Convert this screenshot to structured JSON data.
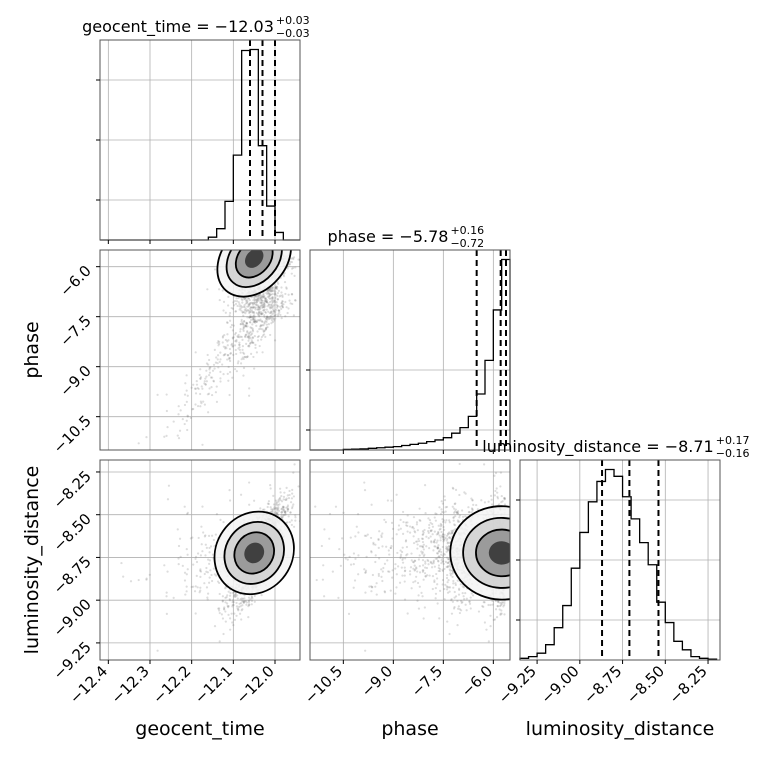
{
  "chart_data": {
    "type": "corner",
    "params": [
      {
        "name": "geocent_time",
        "range": [
          -12.42,
          -11.94
        ],
        "ticks": [
          -12.4,
          -12.3,
          -12.2,
          -12.1,
          -12.0
        ],
        "tick_labels": [
          "−12.4",
          "−12.3",
          "−12.2",
          "−12.1",
          "−12.0"
        ]
      },
      {
        "name": "phase",
        "range": [
          -11.5,
          -5.5
        ],
        "ticks": [
          -10.5,
          -9.0,
          -7.5,
          -6.0
        ],
        "tick_labels": [
          "−10.5",
          "−9.0",
          "−7.5",
          "−6.0"
        ]
      },
      {
        "name": "luminosity_distance",
        "range": [
          -9.35,
          -8.18
        ],
        "ticks": [
          -9.25,
          -9.0,
          -8.75,
          -8.5,
          -8.25
        ],
        "tick_labels": [
          "−9.25",
          "−9.00",
          "−8.75",
          "−8.50",
          "−8.25"
        ]
      }
    ],
    "titles": [
      {
        "text": "geocent_time = −12.03",
        "sup": "+0.03",
        "sub": "−0.03"
      },
      {
        "text": "phase = −5.78",
        "sup": "+0.16",
        "sub": "−0.72"
      },
      {
        "text": "luminosity_distance = −8.71",
        "sup": "+0.17",
        "sub": "−0.16"
      }
    ],
    "quantiles": [
      {
        "q16": -12.06,
        "q50": -12.03,
        "q84": -12.0
      },
      {
        "q16": -6.5,
        "q50": -5.78,
        "q84": -5.62
      },
      {
        "q16": -8.87,
        "q50": -8.71,
        "q84": -8.54
      }
    ],
    "histograms": [
      {
        "bins": [
          -12.42,
          -12.4,
          -12.38,
          -12.36,
          -12.34,
          -12.32,
          -12.3,
          -12.28,
          -12.26,
          -12.24,
          -12.22,
          -12.2,
          -12.18,
          -12.16,
          -12.14,
          -12.12,
          -12.1,
          -12.08,
          -12.06,
          -12.04,
          -12.02,
          -12.0,
          -11.98,
          -11.96,
          -11.94
        ],
        "counts": [
          0,
          0,
          0,
          0,
          0,
          0,
          0,
          0,
          0,
          0,
          0,
          0,
          0,
          0.3,
          1.2,
          4.1,
          9.0,
          20.1,
          20.2,
          10.0,
          3.6,
          0.8,
          0,
          0
        ]
      },
      {
        "bins": [
          -11.5,
          -11.25,
          -11.0,
          -10.75,
          -10.5,
          -10.25,
          -10.0,
          -9.75,
          -9.5,
          -9.25,
          -9.0,
          -8.75,
          -8.5,
          -8.25,
          -8.0,
          -7.75,
          -7.5,
          -7.25,
          -7.0,
          -6.75,
          -6.5,
          -6.25,
          -6.0,
          -5.75,
          -5.5
        ],
        "counts": [
          0,
          0,
          0,
          0,
          0.1,
          0.15,
          0.2,
          0.3,
          0.4,
          0.5,
          0.6,
          0.8,
          1.0,
          1.2,
          1.5,
          1.8,
          2.2,
          3.0,
          4.0,
          6.0,
          10.0,
          16.0,
          25.0,
          34.0
        ]
      },
      {
        "bins": [
          -9.35,
          -9.3,
          -9.25,
          -9.2,
          -9.15,
          -9.1,
          -9.05,
          -9.0,
          -8.95,
          -8.9,
          -8.85,
          -8.8,
          -8.75,
          -8.7,
          -8.65,
          -8.6,
          -8.55,
          -8.5,
          -8.45,
          -8.4,
          -8.35,
          -8.3,
          -8.25,
          -8.2
        ],
        "counts": [
          0.1,
          0.2,
          0.4,
          0.9,
          1.9,
          3.2,
          5.4,
          7.5,
          9.3,
          10.5,
          11.2,
          10.8,
          9.6,
          8.3,
          6.9,
          5.6,
          3.4,
          2.2,
          1.1,
          0.6,
          0.2,
          0.1,
          0.05
        ]
      }
    ],
    "hist_ticks": [
      [
        0.2,
        0.5,
        0.8
      ],
      [
        0.1,
        0.4
      ],
      [
        0.2,
        0.5,
        0.8
      ]
    ],
    "correlations": {
      "t_phase": 0.45,
      "t_dist": 0.8,
      "phase_dist": 0.25
    },
    "grid": true
  }
}
